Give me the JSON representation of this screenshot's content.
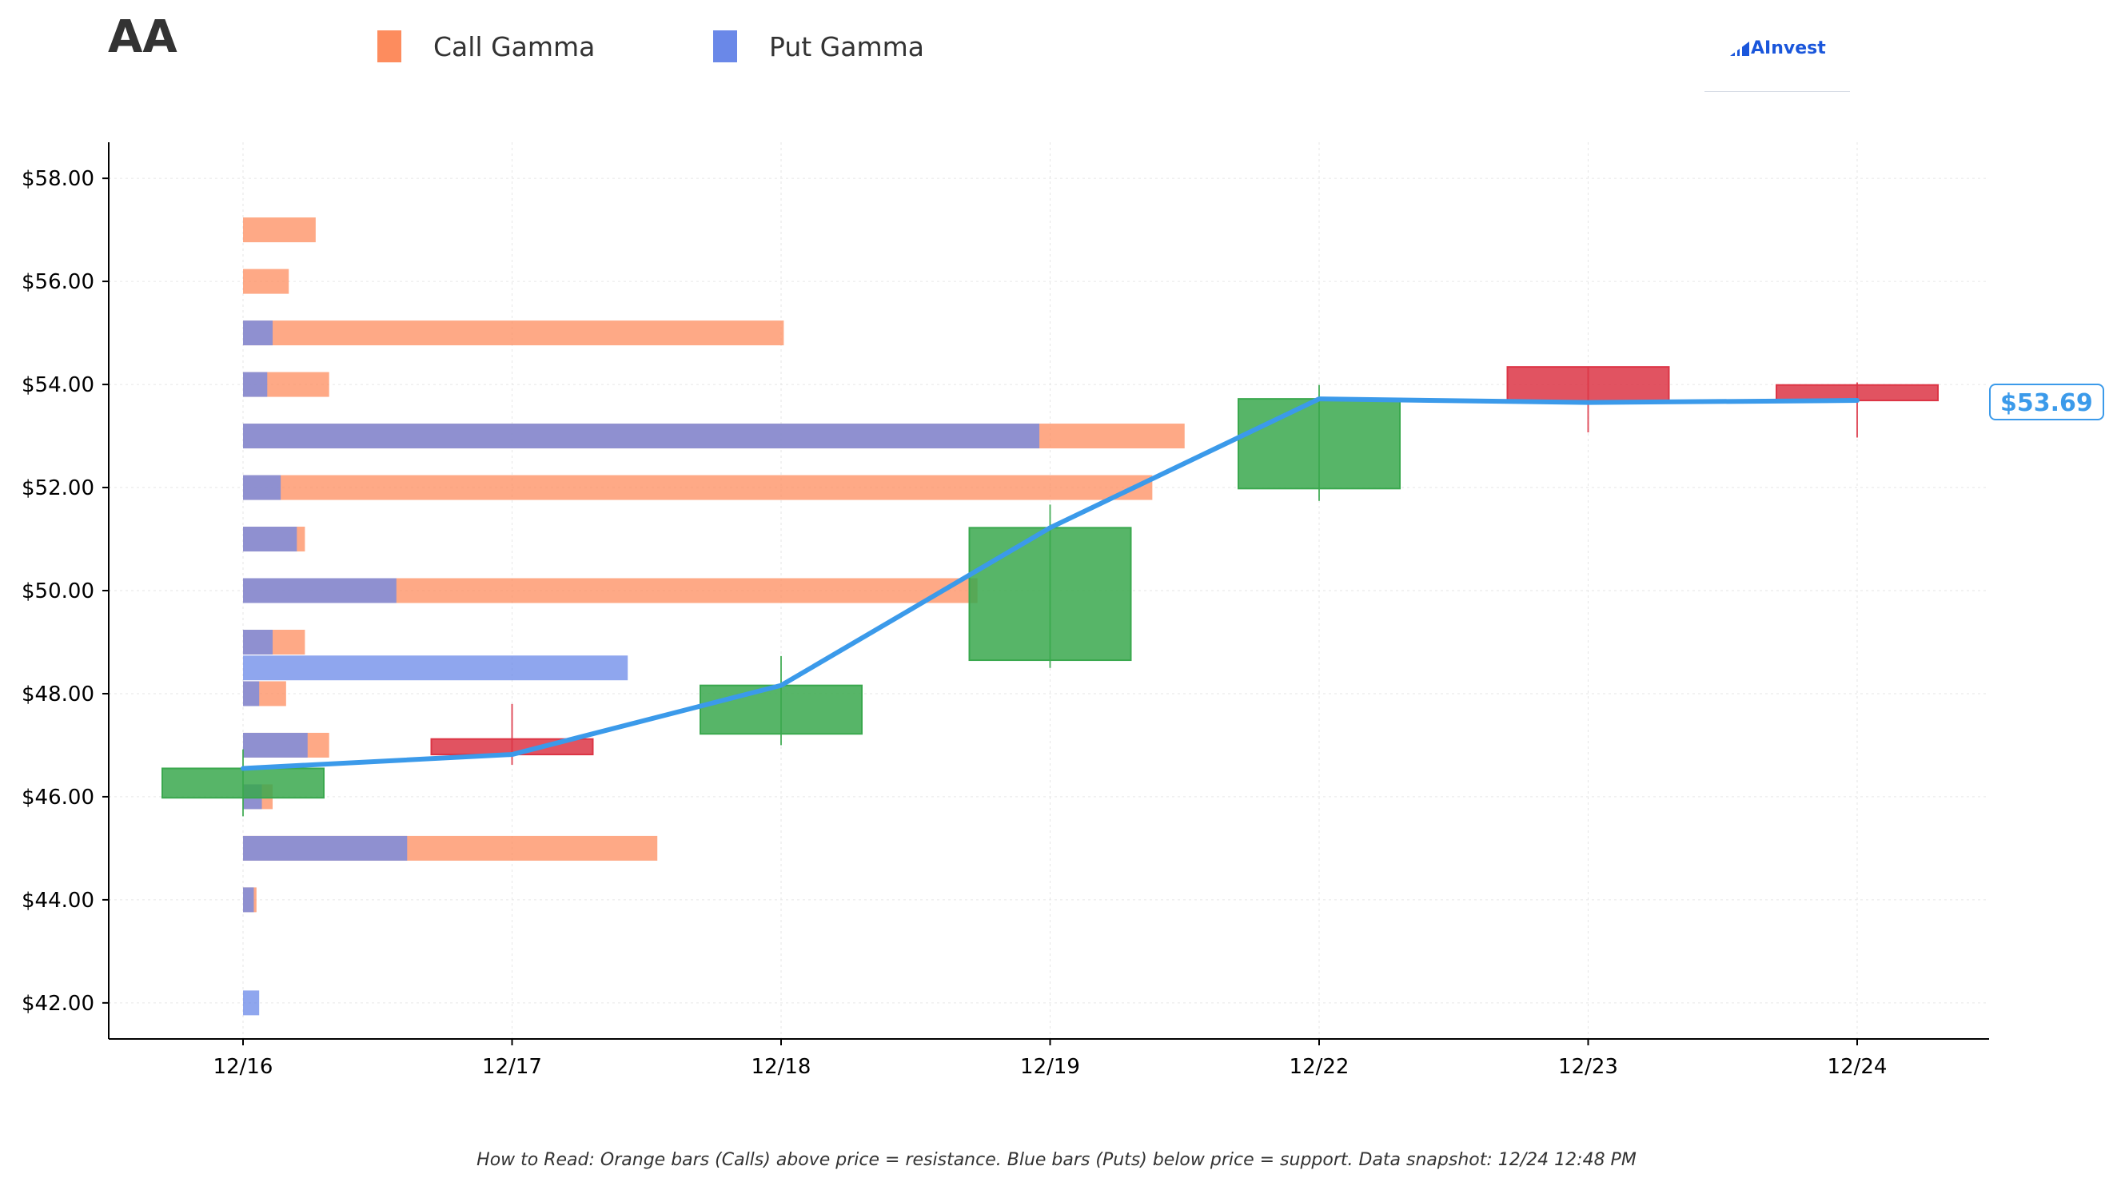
{
  "ticker": "AA",
  "legend": {
    "call_label": "Call Gamma",
    "put_label": "Put Gamma",
    "call_color": "#fd8c5e",
    "put_color": "#6a88e8"
  },
  "brand": {
    "name": "AInvest",
    "color": "#1a56db"
  },
  "footnote": "How to Read: Orange bars (Calls) above price = resistance. Blue bars (Puts) below price = support. Data snapshot: 12/24 12:48 PM",
  "last_price_label": "$53.69",
  "chart_data": {
    "type": "candlestick_with_gamma_bars",
    "categories": [
      "12/16",
      "12/17",
      "12/18",
      "12/19",
      "12/22",
      "12/23",
      "12/24"
    ],
    "ylim": [
      41.3,
      58.7
    ],
    "yticks": [
      42,
      44,
      46,
      48,
      50,
      52,
      54,
      56,
      58
    ],
    "ytick_labels": [
      "$42.00",
      "$44.00",
      "$46.00",
      "$48.00",
      "$50.00",
      "$52.00",
      "$54.00",
      "$56.00",
      "$58.00"
    ],
    "grid": true,
    "colors": {
      "up": "#3aa84e",
      "down": "#dc3545",
      "line": "#3b9aea"
    },
    "candles": [
      {
        "date": "12/16",
        "open": 45.98,
        "high": 46.92,
        "low": 45.62,
        "close": 46.55
      },
      {
        "date": "12/17",
        "open": 47.12,
        "high": 47.8,
        "low": 46.62,
        "close": 46.82
      },
      {
        "date": "12/18",
        "open": 47.22,
        "high": 48.73,
        "low": 47.0,
        "close": 48.16
      },
      {
        "date": "12/19",
        "open": 48.65,
        "high": 51.67,
        "low": 48.5,
        "close": 51.22
      },
      {
        "date": "12/22",
        "open": 51.98,
        "high": 53.99,
        "low": 51.74,
        "close": 53.72
      },
      {
        "date": "12/23",
        "open": 54.34,
        "high": 54.34,
        "low": 53.07,
        "close": 53.65
      },
      {
        "date": "12/24",
        "open": 53.99,
        "high": 54.04,
        "low": 52.97,
        "close": 53.69
      }
    ],
    "close_line": [
      46.55,
      46.82,
      48.16,
      51.22,
      53.72,
      53.65,
      53.69
    ],
    "gamma_bars": [
      {
        "strike": 57.0,
        "put": 0.0,
        "call": 0.27
      },
      {
        "strike": 56.0,
        "put": 0.0,
        "call": 0.17
      },
      {
        "strike": 55.0,
        "put": 0.11,
        "call": 2.01
      },
      {
        "strike": 54.0,
        "put": 0.09,
        "call": 0.32
      },
      {
        "strike": 53.0,
        "put": 2.96,
        "call": 3.5
      },
      {
        "strike": 52.0,
        "put": 0.14,
        "call": 3.38
      },
      {
        "strike": 51.0,
        "put": 0.2,
        "call": 0.23
      },
      {
        "strike": 50.0,
        "put": 0.57,
        "call": 2.73
      },
      {
        "strike": 49.0,
        "put": 0.11,
        "call": 0.23
      },
      {
        "strike": 48.5,
        "put": 1.43,
        "call": 0.0
      },
      {
        "strike": 48.0,
        "put": 0.06,
        "call": 0.16
      },
      {
        "strike": 47.0,
        "put": 0.24,
        "call": 0.32
      },
      {
        "strike": 46.0,
        "put": 0.07,
        "call": 0.11
      },
      {
        "strike": 45.0,
        "put": 0.61,
        "call": 1.54
      },
      {
        "strike": 44.0,
        "put": 0.04,
        "call": 0.05
      },
      {
        "strike": 42.0,
        "put": 0.06,
        "call": 0.0
      }
    ]
  }
}
